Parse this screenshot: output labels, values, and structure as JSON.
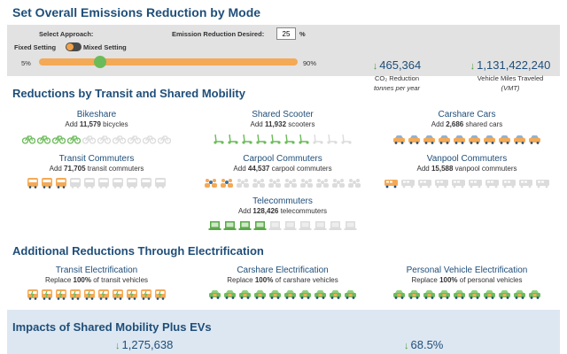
{
  "header": {
    "title": "Set Overall Emissions Reduction by Mode"
  },
  "controls": {
    "approach_label": "Select Approach:",
    "fixed_label": "Fixed Setting",
    "mixed_label": "Mixed Setting",
    "reduction_label": "Emission Reduction Desired:",
    "reduction_value": "25",
    "pct_symbol": "%",
    "slider_min": "5%",
    "slider_max": "90%",
    "slider_value_pct": 25
  },
  "metrics": {
    "co2": {
      "value": "465,364",
      "unit": "CO₂ Reduction",
      "sub": "tonnes per year"
    },
    "vmt": {
      "value": "1,131,422,240",
      "unit": "Vehicle Miles Traveled",
      "sub": "(VMT)"
    }
  },
  "transit_section": {
    "title": "Reductions by Transit and Shared Mobility",
    "blocks": [
      {
        "title": "Bikeshare",
        "prefix": "Add ",
        "number": "11,579",
        "suffix": " bicycles",
        "icon": "bicycle-icon",
        "filled": 4,
        "total": 10
      },
      {
        "title": "Shared Scooter",
        "prefix": "Add ",
        "number": "11,932",
        "suffix": " scooters",
        "icon": "scooter-icon",
        "filled": 7,
        "total": 10
      },
      {
        "title": "Carshare Cars",
        "prefix": "Add ",
        "number": "2,686",
        "suffix": " shared cars",
        "icon": "car-icon",
        "filled": 10,
        "total": 10
      },
      {
        "title": "Transit Commuters",
        "prefix": "Add ",
        "number": "71,705",
        "suffix": " transit commuters",
        "icon": "bus-icon",
        "filled": 3,
        "total": 10
      },
      {
        "title": "Carpool Commuters",
        "prefix": "Add ",
        "number": "44,537",
        "suffix": " carpool commuters",
        "icon": "carpool-icon",
        "filled": 2,
        "total": 10
      },
      {
        "title": "Vanpool Commuters",
        "prefix": "Add ",
        "number": "15,588",
        "suffix": " vanpool commuters",
        "icon": "van-icon",
        "filled": 1,
        "total": 10
      },
      {
        "title": "Telecommuters",
        "prefix": "Add ",
        "number": "128,426",
        "suffix": " telecommuters",
        "icon": "laptop-icon",
        "filled": 4,
        "total": 10
      }
    ]
  },
  "electrification_section": {
    "title": "Additional Reductions Through Electrification",
    "blocks": [
      {
        "title": "Transit Electrification",
        "prefix": "Replace ",
        "number": "100%",
        "suffix": " of transit vehicles",
        "icon": "electric-bus-icon",
        "filled": 10,
        "total": 10
      },
      {
        "title": "Carshare Electrification",
        "prefix": "Replace ",
        "number": "100%",
        "suffix": " of carshare vehicles",
        "icon": "electric-car-icon",
        "filled": 10,
        "total": 10
      },
      {
        "title": "Personal Vehicle Electrification",
        "prefix": "Replace ",
        "number": "100%",
        "suffix": " of personal vehicles",
        "icon": "electric-car-icon",
        "filled": 10,
        "total": 10
      }
    ]
  },
  "impacts": {
    "title": "Impacts of Shared Mobility Plus EVs",
    "value1": "1,275,638",
    "value2": "68.5%"
  },
  "colors": {
    "accent_blue": "#1f4e79",
    "green": "#6cbb5a",
    "orange": "#f4a955",
    "faded": "#dcdcdc"
  }
}
